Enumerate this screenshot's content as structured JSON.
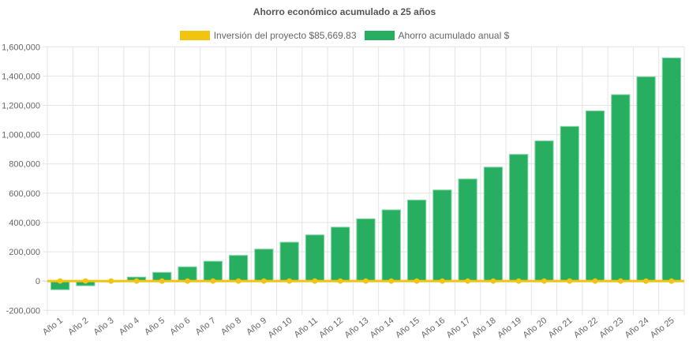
{
  "chart_data": {
    "type": "bar",
    "title": "Ahorro económico acumulado a 25 años",
    "categories": [
      "Año 1",
      "Año 2",
      "Año 3",
      "Año 4",
      "Año 5",
      "Año 6",
      "Año 7",
      "Año 8",
      "Año 9",
      "Año 10",
      "Año 11",
      "Año 12",
      "Año 13",
      "Año 14",
      "Año 15",
      "Año 16",
      "Año 17",
      "Año 18",
      "Año 19",
      "Año 20",
      "Año 21",
      "Año 22",
      "Año 23",
      "Año 24",
      "Año 25"
    ],
    "series": [
      {
        "name": "Inversión del proyecto $85,669.83",
        "type": "line",
        "color": "#f1c40f",
        "values": [
          0,
          0,
          0,
          0,
          0,
          0,
          0,
          0,
          0,
          0,
          0,
          0,
          0,
          0,
          0,
          0,
          0,
          0,
          0,
          0,
          0,
          0,
          0,
          0,
          0
        ]
      },
      {
        "name": "Ahorro acumulado anual $",
        "type": "bar",
        "color": "#27ae60",
        "values": [
          -59000,
          -32000,
          -3000,
          27000,
          59000,
          97000,
          135000,
          175000,
          218000,
          265000,
          315000,
          368000,
          425000,
          486000,
          553000,
          622000,
          697000,
          778000,
          865000,
          957000,
          1056000,
          1162000,
          1273000,
          1395000,
          1524000
        ]
      }
    ],
    "yticks": [
      "-200,000",
      "0",
      "200,000",
      "400,000",
      "600,000",
      "800,000",
      "1,000,000",
      "1,200,000",
      "1,400,000",
      "1,600,000"
    ],
    "ylim": [
      -200000,
      1600000
    ],
    "grid": true,
    "legend_position": "top"
  }
}
